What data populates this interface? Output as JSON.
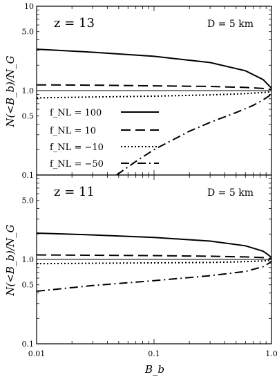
{
  "chart_data": {
    "type": "line",
    "xlabel": "B_b",
    "ylabel": "N(<B_b)/N_G",
    "x_scale": "log",
    "y_scale": "log",
    "xlim": [
      0.01,
      1.0
    ],
    "ylim": [
      0.1,
      10
    ],
    "x_ticks": [
      {
        "v": 0.01,
        "label": "0.01"
      },
      {
        "v": 0.1,
        "label": "0.1"
      },
      {
        "v": 1.0,
        "label": "1.0"
      }
    ],
    "legend": {
      "placement": "center-left",
      "entries": [
        {
          "label": "f_NL = 100",
          "style": "solid"
        },
        {
          "label": "f_NL = 10",
          "style": "dashed"
        },
        {
          "label": "f_NL = −10",
          "style": "dotted"
        },
        {
          "label": "f_NL = −50",
          "style": "dashdot"
        }
      ]
    },
    "panels": [
      {
        "z_label": "z = 13",
        "D_label": "D = 5  km",
        "y_ticks": [
          {
            "v": 0.1,
            "label": "0.1"
          },
          {
            "v": 0.5,
            "label": "0.5"
          },
          {
            "v": 1.0,
            "label": "1.0"
          },
          {
            "v": 5.0,
            "label": "5.0"
          },
          {
            "v": 10,
            "label": "10"
          }
        ],
        "reference_line": 1.0,
        "series": [
          {
            "style": "solid",
            "x": [
              0.01,
              0.03,
              0.1,
              0.3,
              0.6,
              0.85,
              0.95,
              1.0
            ],
            "y": [
              3.1,
              2.85,
              2.55,
              2.15,
              1.72,
              1.35,
              1.15,
              1.07
            ]
          },
          {
            "style": "dashed",
            "x": [
              0.01,
              0.03,
              0.1,
              0.3,
              0.6,
              0.85,
              1.0
            ],
            "y": [
              1.17,
              1.16,
              1.14,
              1.12,
              1.09,
              1.06,
              1.03
            ]
          },
          {
            "style": "dotted",
            "x": [
              0.01,
              0.03,
              0.1,
              0.3,
              0.6,
              0.85,
              1.0
            ],
            "y": [
              0.82,
              0.84,
              0.86,
              0.89,
              0.92,
              0.95,
              0.97
            ]
          },
          {
            "style": "dashdot",
            "x": [
              0.048,
              0.07,
              0.1,
              0.2,
              0.3,
              0.5,
              0.7,
              0.85,
              0.95,
              1.0
            ],
            "y": [
              0.1,
              0.145,
              0.2,
              0.33,
              0.42,
              0.55,
              0.67,
              0.78,
              0.86,
              0.92
            ]
          }
        ]
      },
      {
        "z_label": "z = 11",
        "D_label": "D = 5  km",
        "y_ticks": [
          {
            "v": 0.1,
            "label": "0.1"
          },
          {
            "v": 0.5,
            "label": "0.5"
          },
          {
            "v": 1.0,
            "label": "1.0"
          },
          {
            "v": 5.0,
            "label": "5.0"
          }
        ],
        "reference_line": 1.0,
        "series": [
          {
            "style": "solid",
            "x": [
              0.01,
              0.03,
              0.1,
              0.3,
              0.6,
              0.85,
              0.95,
              1.0
            ],
            "y": [
              2.05,
              1.95,
              1.82,
              1.65,
              1.45,
              1.25,
              1.12,
              1.05
            ]
          },
          {
            "style": "dashed",
            "x": [
              0.01,
              0.03,
              0.1,
              0.3,
              0.6,
              0.85,
              1.0
            ],
            "y": [
              1.13,
              1.12,
              1.11,
              1.09,
              1.07,
              1.05,
              1.02
            ]
          },
          {
            "style": "dotted",
            "x": [
              0.01,
              0.03,
              0.1,
              0.3,
              0.6,
              0.85,
              1.0
            ],
            "y": [
              0.89,
              0.9,
              0.91,
              0.92,
              0.94,
              0.96,
              0.98
            ]
          },
          {
            "style": "dashdot",
            "x": [
              0.01,
              0.03,
              0.1,
              0.3,
              0.6,
              0.85,
              0.95,
              1.0
            ],
            "y": [
              0.42,
              0.49,
              0.56,
              0.64,
              0.72,
              0.82,
              0.9,
              0.95
            ]
          }
        ]
      }
    ]
  }
}
